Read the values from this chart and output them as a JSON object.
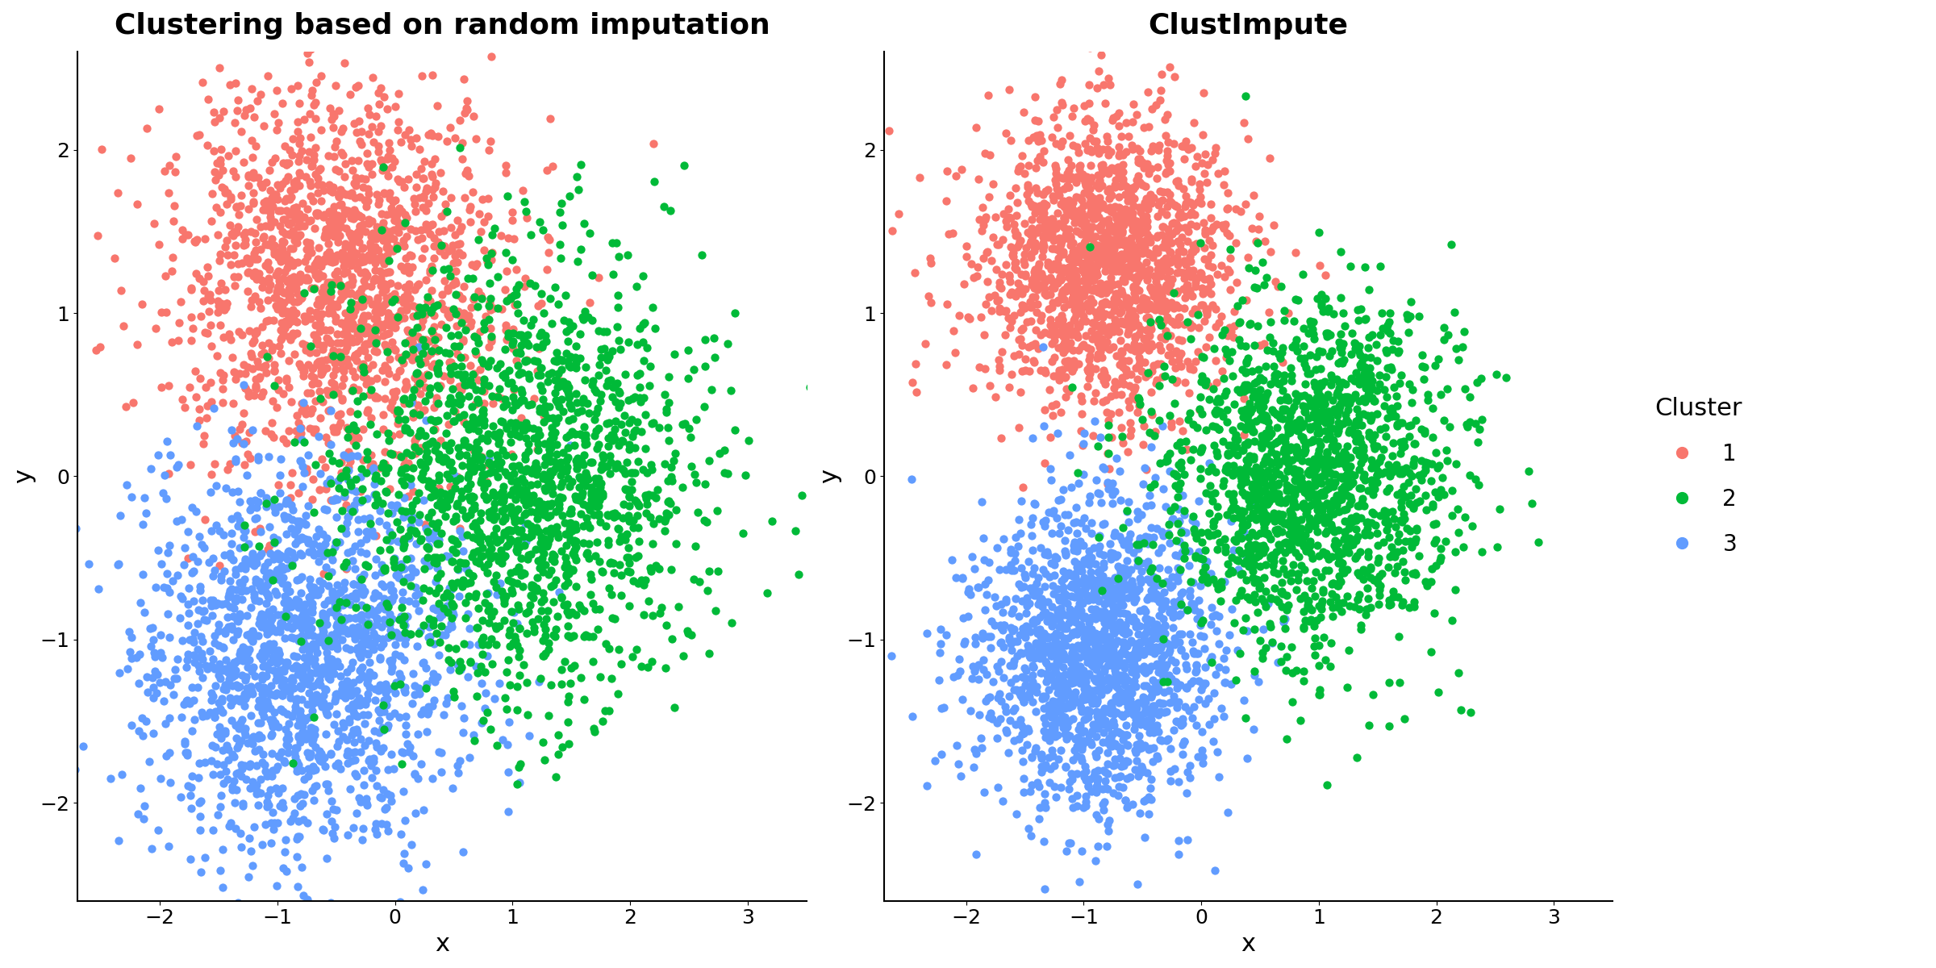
{
  "title_left": "Clustering based on random imputation",
  "title_right": "ClustImpute",
  "xlabel": "x",
  "ylabel": "y",
  "xlim": [
    -2.7,
    3.5
  ],
  "ylim": [
    -2.6,
    2.6
  ],
  "xticks": [
    -2,
    -1,
    0,
    1,
    2,
    3
  ],
  "yticks": [
    -2,
    -1,
    0,
    1,
    2
  ],
  "cluster_colors": {
    "1": "#F8766D",
    "2": "#00BA38",
    "3": "#619CFF"
  },
  "cluster_labels": [
    "1",
    "2",
    "3"
  ],
  "n_points": 5000,
  "random_seed": 42,
  "point_size": 55,
  "point_alpha": 1.0,
  "background_color": "#FFFFFF",
  "legend_title": "Cluster",
  "title_fontsize": 26,
  "axis_label_fontsize": 22,
  "tick_fontsize": 18,
  "legend_fontsize": 20,
  "legend_title_fontsize": 22
}
